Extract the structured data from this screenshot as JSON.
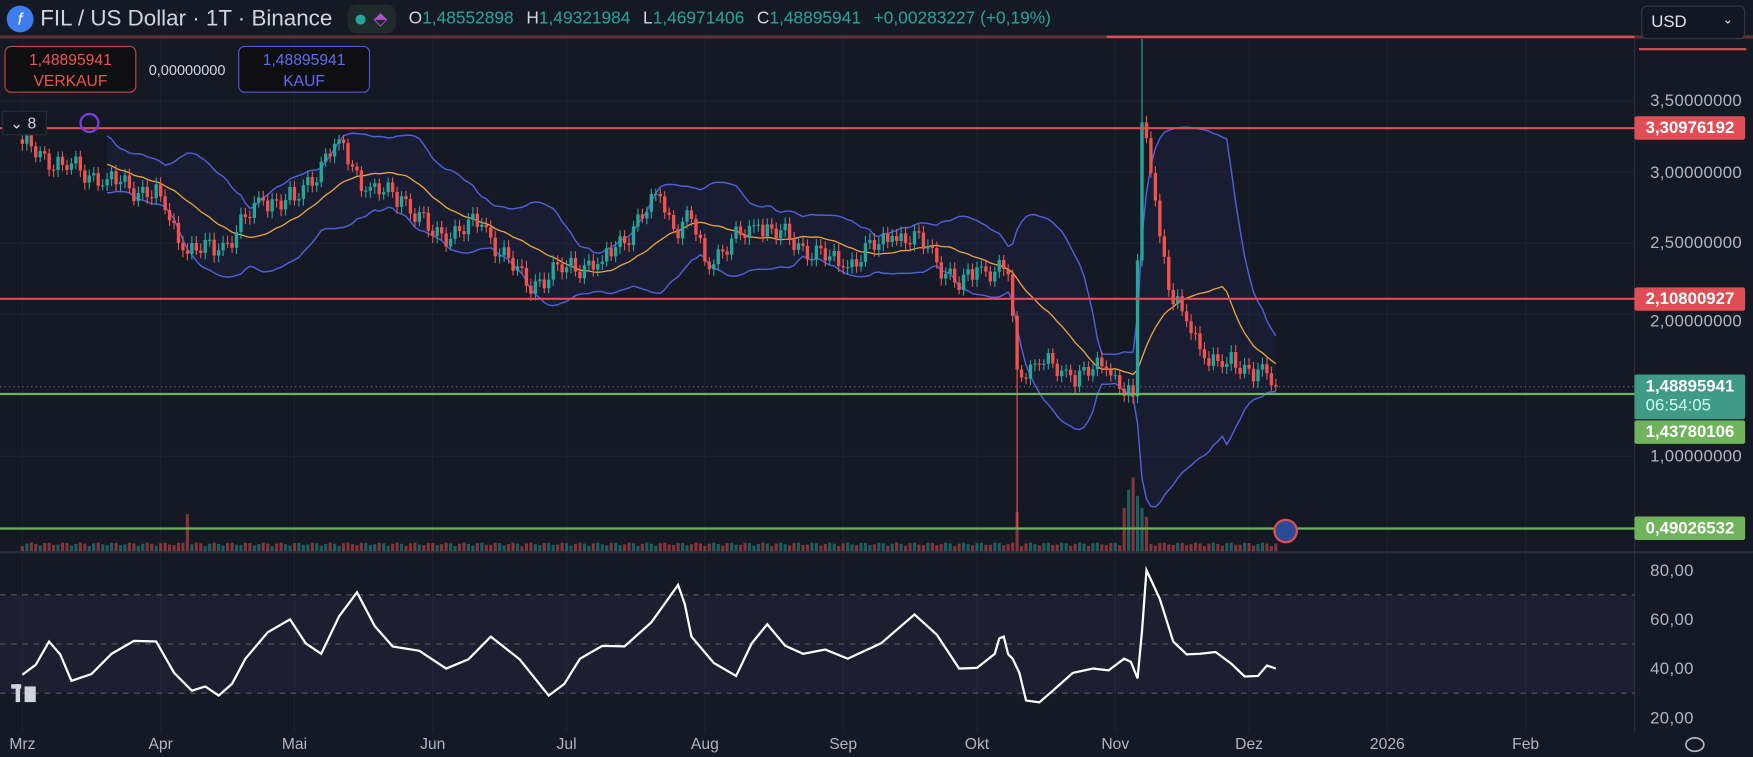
{
  "header": {
    "symbol_title": "FIL / US Dollar · 1T · Binance",
    "logo_letter": "f",
    "ohlc": [
      {
        "key": "O",
        "value": "1,48552898"
      },
      {
        "key": "H",
        "value": "1,49321984"
      },
      {
        "key": "L",
        "value": "1,46971406"
      },
      {
        "key": "C",
        "value": "1,48895941"
      }
    ],
    "change": "+0,00283227 (+0,19%)"
  },
  "trade": {
    "sell_price": "1,48895941",
    "sell_label": "VERKAUF",
    "spread": "0,00000000",
    "buy_price": "1,48895941",
    "buy_label": "KAUF"
  },
  "indicator_toggle": {
    "count": "8"
  },
  "currency_select": {
    "value": "USD"
  },
  "colors": {
    "up": "#26a69a",
    "down": "#ef5350",
    "bollinger": "#4f5fd8",
    "ma": "#e8a33c",
    "rsi": "#ffffff",
    "resistance": "#e04d55",
    "support": "#6fb35a",
    "background": "#151924"
  },
  "chart_data": [
    {
      "type": "candlestick",
      "y_axis": {
        "ticks": [
          "3,50000000",
          "3,00000000",
          "2,50000000",
          "2,00000000",
          "1,00000000"
        ],
        "tick_values": [
          3.5,
          3.0,
          2.5,
          2.0,
          1.0
        ],
        "range": [
          0.38,
          4.45
        ]
      },
      "x_axis": {
        "ticks": [
          "Mrz",
          "Apr",
          "Mai",
          "Jun",
          "Jul",
          "Aug",
          "Sep",
          "Okt",
          "Nov",
          "Dez",
          "2026",
          "Feb"
        ],
        "tick_dates": [
          "2025-03-01",
          "2025-04-01",
          "2025-05-01",
          "2025-06-01",
          "2025-07-01",
          "2025-08-01",
          "2025-09-01",
          "2025-10-01",
          "2025-11-01",
          "2025-12-01",
          "2026-01-01",
          "2026-02-01"
        ]
      },
      "close_keypoints": [
        [
          "2025-03-01",
          3.2
        ],
        [
          "2025-03-10",
          3.05
        ],
        [
          "2025-03-20",
          2.95
        ],
        [
          "2025-04-01",
          2.83
        ],
        [
          "2025-04-06",
          2.45
        ],
        [
          "2025-04-14",
          2.45
        ],
        [
          "2025-04-24",
          2.8
        ],
        [
          "2025-05-01",
          2.8
        ],
        [
          "2025-05-11",
          3.23
        ],
        [
          "2025-05-17",
          2.87
        ],
        [
          "2025-05-25",
          2.83
        ],
        [
          "2025-06-01",
          2.55
        ],
        [
          "2025-06-12",
          2.63
        ],
        [
          "2025-06-22",
          2.2
        ],
        [
          "2025-07-01",
          2.33
        ],
        [
          "2025-07-09",
          2.37
        ],
        [
          "2025-07-22",
          2.83
        ],
        [
          "2025-07-25",
          2.6
        ],
        [
          "2025-07-29",
          2.67
        ],
        [
          "2025-08-01",
          2.37
        ],
        [
          "2025-08-13",
          2.63
        ],
        [
          "2025-08-23",
          2.48
        ],
        [
          "2025-09-01",
          2.33
        ],
        [
          "2025-09-12",
          2.55
        ],
        [
          "2025-09-20",
          2.48
        ],
        [
          "2025-09-27",
          2.17
        ],
        [
          "2025-10-01",
          2.33
        ],
        [
          "2025-10-08",
          2.28
        ],
        [
          "2025-10-10",
          1.61
        ],
        [
          "2025-10-15",
          1.65
        ],
        [
          "2025-10-22",
          1.57
        ],
        [
          "2025-10-30",
          1.61
        ],
        [
          "2025-11-01",
          1.57
        ],
        [
          "2025-11-05",
          1.42
        ],
        [
          "2025-11-07",
          3.35
        ],
        [
          "2025-11-10",
          2.8
        ],
        [
          "2025-11-13",
          2.17
        ],
        [
          "2025-11-16",
          2.02
        ],
        [
          "2025-11-21",
          1.69
        ],
        [
          "2025-11-26",
          1.65
        ],
        [
          "2025-12-03",
          1.61
        ],
        [
          "2025-12-07",
          1.489
        ]
      ],
      "extreme_wicks": [
        {
          "date": "2025-10-10",
          "low": 0.49
        },
        {
          "date": "2025-11-07",
          "high": 3.94
        }
      ],
      "overlays": {
        "bollinger_period": 20,
        "bollinger_stddev": 2
      },
      "volume_spikes": [
        [
          "2025-04-07",
          0.3
        ],
        [
          "2025-10-10",
          0.32
        ],
        [
          "2025-11-03",
          0.35
        ],
        [
          "2025-11-04",
          0.5
        ],
        [
          "2025-11-05",
          0.6
        ],
        [
          "2025-11-06",
          0.45
        ],
        [
          "2025-11-07",
          0.35
        ],
        [
          "2025-11-08",
          0.28
        ]
      ],
      "price_lines": [
        {
          "label": "3,30976192",
          "value": 3.30976192,
          "kind": "resistance"
        },
        {
          "label": "2,10800927",
          "value": 2.10800927,
          "kind": "resistance"
        },
        {
          "label": "1,43780106",
          "value": 1.43780106,
          "kind": "support"
        },
        {
          "label": "0,49026532",
          "value": 0.49026532,
          "kind": "support"
        }
      ],
      "last_price": {
        "label": "1,48895941",
        "value": 1.48895941,
        "countdown": "06:54:05"
      }
    },
    {
      "type": "line",
      "y_axis": {
        "ticks": [
          "80,00",
          "60,00",
          "40,00",
          "20,00"
        ],
        "tick_values": [
          80,
          60,
          40,
          20
        ]
      },
      "bands": [
        30,
        50,
        70
      ],
      "points": [
        [
          "2025-03-01",
          37.5
        ],
        [
          "2025-03-07",
          51
        ],
        [
          "2025-03-12",
          35
        ],
        [
          "2025-03-21",
          46
        ],
        [
          "2025-03-31",
          51
        ],
        [
          "2025-04-08",
          31
        ],
        [
          "2025-04-14",
          29
        ],
        [
          "2025-04-20",
          44
        ],
        [
          "2025-04-30",
          60
        ],
        [
          "2025-05-07",
          46
        ],
        [
          "2025-05-15",
          71
        ],
        [
          "2025-05-23",
          49
        ],
        [
          "2025-06-04",
          40
        ],
        [
          "2025-06-14",
          53
        ],
        [
          "2025-06-27",
          29
        ],
        [
          "2025-07-04",
          44
        ],
        [
          "2025-07-14",
          49
        ],
        [
          "2025-07-26",
          74
        ],
        [
          "2025-07-29",
          53
        ],
        [
          "2025-08-08",
          37
        ],
        [
          "2025-08-15",
          58
        ],
        [
          "2025-08-23",
          46
        ],
        [
          "2025-09-02",
          44
        ],
        [
          "2025-09-17",
          62
        ],
        [
          "2025-09-27",
          40
        ],
        [
          "2025-10-05",
          46
        ],
        [
          "2025-10-07",
          53
        ],
        [
          "2025-10-09",
          44
        ],
        [
          "2025-10-12",
          27
        ],
        [
          "2025-10-18",
          31
        ],
        [
          "2025-10-27",
          40
        ],
        [
          "2025-11-03",
          44
        ],
        [
          "2025-11-06",
          36
        ],
        [
          "2025-11-08",
          80
        ],
        [
          "2025-11-14",
          51
        ],
        [
          "2025-11-20",
          46
        ],
        [
          "2025-11-27",
          42
        ],
        [
          "2025-12-03",
          37
        ],
        [
          "2025-12-07",
          40
        ]
      ]
    }
  ]
}
